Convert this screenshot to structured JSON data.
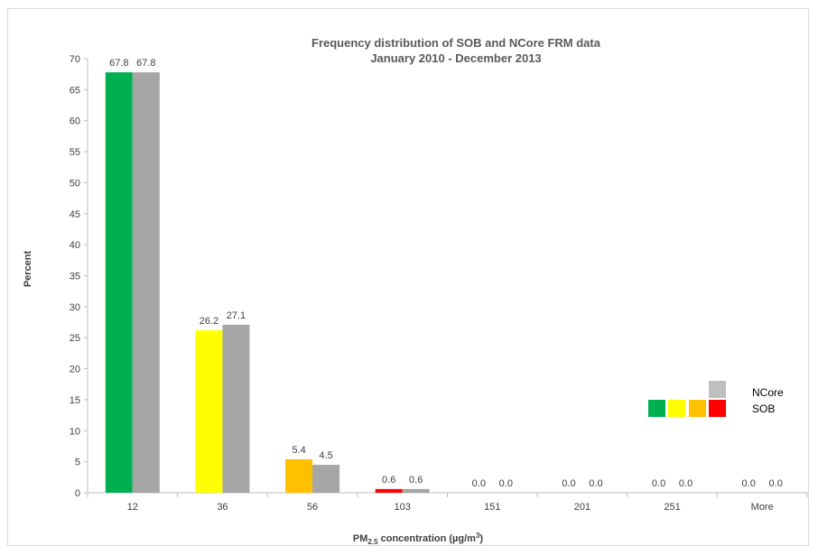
{
  "chart_data": {
    "type": "bar",
    "title": "Frequency distribution of SOB and NCore FRM data",
    "subtitle": "January 2010 - December 2013",
    "ylabel": "Percent",
    "xlabel_main": "PM",
    "xlabel_sub": "2.5",
    "xlabel_rest": " concentration (µg/m",
    "xlabel_sup": "3",
    "xlabel_close": ")",
    "categories": [
      "12",
      "36",
      "56",
      "103",
      "151",
      "201",
      "251",
      "More"
    ],
    "ylim": [
      0,
      70
    ],
    "yticks": [
      0,
      5,
      10,
      15,
      20,
      25,
      30,
      35,
      40,
      45,
      50,
      55,
      60,
      65,
      70
    ],
    "grid": false,
    "series": [
      {
        "name": "SOB",
        "values": [
          67.8,
          26.2,
          5.4,
          0.6,
          0.0,
          0.0,
          0.0,
          0.0
        ],
        "labels": [
          "67.8",
          "26.2",
          "5.4",
          "0.6",
          "0.0",
          "0.0",
          "0.0",
          "0.0"
        ],
        "colors": [
          "#00b050",
          "#ffff00",
          "#ffc000",
          "#ff0000",
          "#00b050",
          "#00b050",
          "#00b050",
          "#00b050"
        ]
      },
      {
        "name": "NCore",
        "values": [
          67.8,
          27.1,
          4.5,
          0.6,
          0.0,
          0.0,
          0.0,
          0.0
        ],
        "labels": [
          "67.8",
          "27.1",
          "4.5",
          "0.6",
          "0.0",
          "0.0",
          "0.0",
          "0.0"
        ],
        "colors": [
          "#a6a6a6",
          "#a6a6a6",
          "#a6a6a6",
          "#a6a6a6",
          "#a6a6a6",
          "#a6a6a6",
          "#a6a6a6",
          "#a6a6a6"
        ]
      }
    ],
    "legend": {
      "placement": "right",
      "ncore_label": "NCore",
      "sob_label": "SOB",
      "ncore_color": "#bfbfbf",
      "sob_colors": [
        "#00b050",
        "#ffff00",
        "#ffc000",
        "#ff0000"
      ]
    }
  }
}
